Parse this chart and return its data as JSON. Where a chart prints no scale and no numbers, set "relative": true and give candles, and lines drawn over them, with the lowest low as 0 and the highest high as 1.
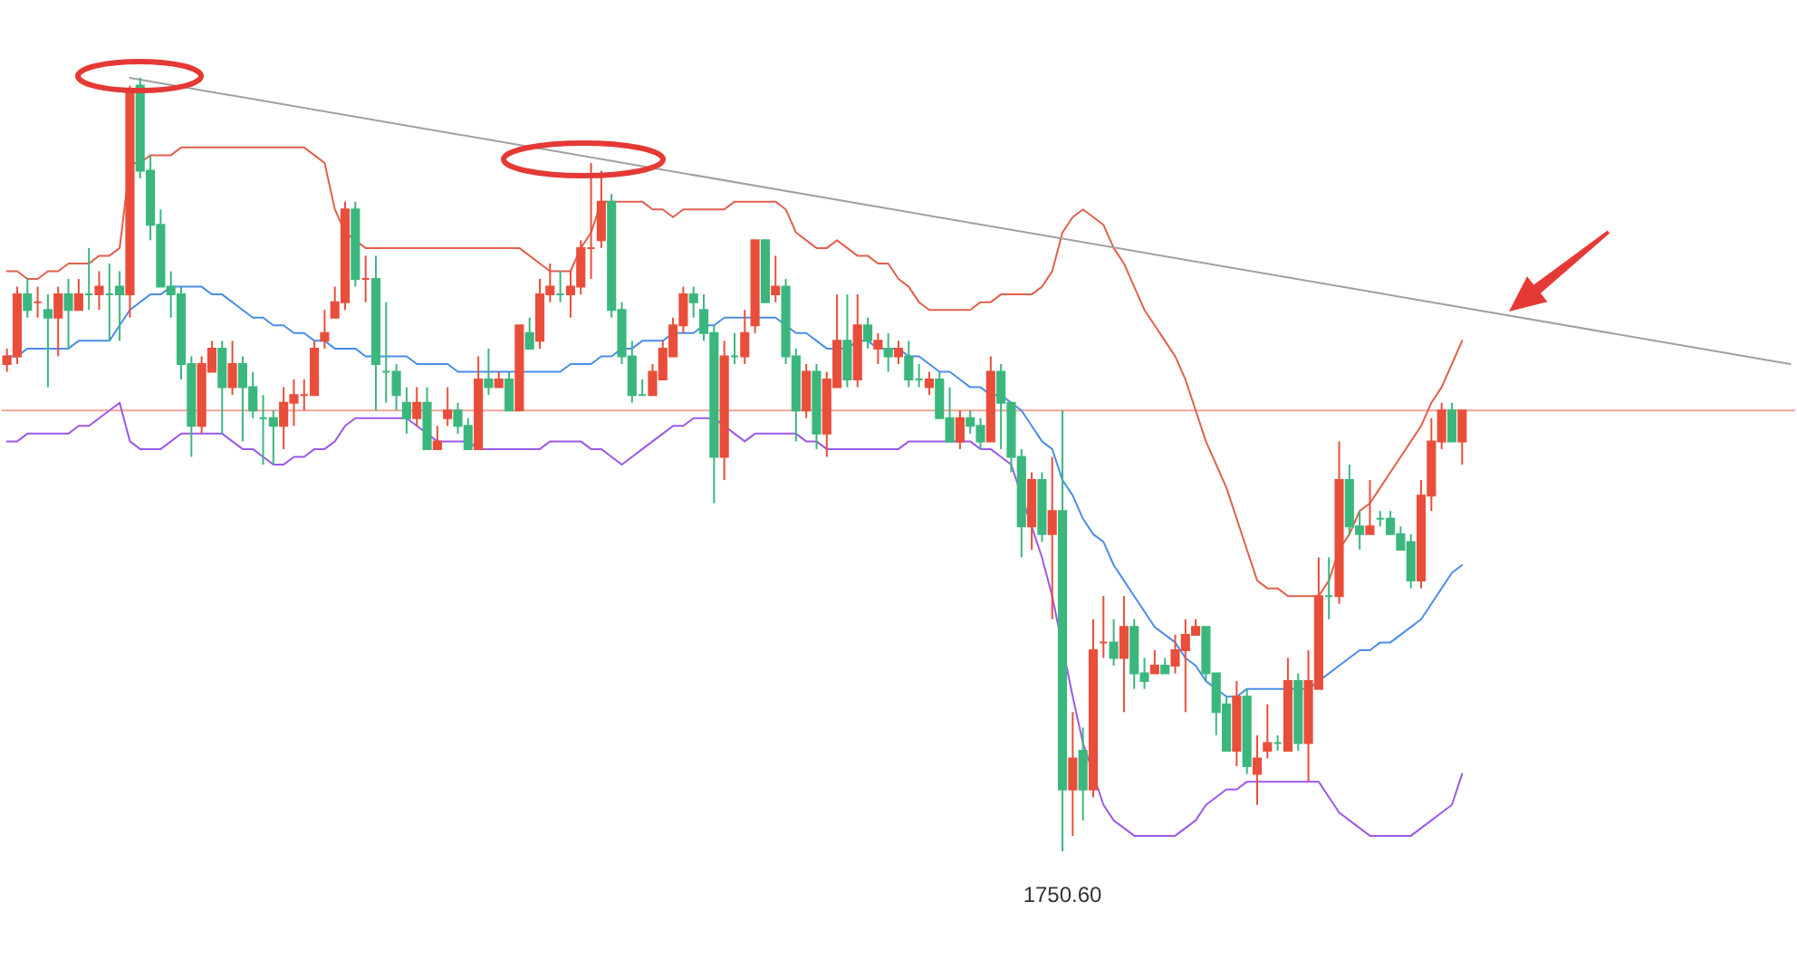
{
  "chart_data": {
    "type": "candlestick",
    "relative": true,
    "categories": [
      null,
      null,
      null,
      null,
      null,
      null,
      null,
      null,
      null,
      null,
      null,
      null,
      null,
      null,
      null,
      null,
      null,
      null,
      null,
      null,
      null,
      null,
      null,
      null,
      null,
      null,
      null,
      null,
      null,
      null,
      null,
      null,
      null,
      null,
      null,
      null,
      null,
      null,
      null,
      null,
      null,
      null,
      null,
      null,
      null,
      null,
      null,
      null,
      null,
      null,
      null,
      null,
      null,
      null,
      null,
      null,
      null,
      null,
      null,
      null,
      null,
      null,
      null,
      null,
      null,
      null,
      null,
      null,
      null,
      null,
      null,
      null,
      null,
      null,
      null,
      null,
      null,
      null,
      null,
      null,
      null,
      null,
      null,
      null,
      null,
      null,
      null,
      null,
      null,
      null,
      null,
      null,
      null,
      null,
      null,
      null,
      null,
      null,
      null,
      null,
      null,
      null,
      null,
      null,
      null,
      null,
      null,
      null,
      null,
      null,
      null,
      null,
      null,
      null,
      null,
      null,
      null,
      null,
      null,
      null,
      null,
      null,
      null,
      null,
      null,
      null,
      null,
      null,
      null,
      null,
      null,
      null,
      null,
      null,
      null,
      null,
      null,
      null,
      null,
      null,
      null,
      null,
      null,
      null,
      null,
      null,
      null,
      null,
      null,
      null,
      null,
      null,
      null,
      null,
      null,
      null,
      null,
      null,
      null,
      null,
      null,
      null,
      null,
      null,
      null,
      null,
      null,
      null,
      null,
      null,
      null,
      null,
      null,
      null,
      null
    ],
    "ohlc": [
      [
        0.63,
        0.65,
        0.62,
        0.64
      ],
      [
        0.64,
        0.73,
        0.63,
        0.72
      ],
      [
        0.72,
        0.74,
        0.69,
        0.7
      ],
      [
        0.71,
        0.73,
        0.69,
        0.71
      ],
      [
        0.7,
        0.72,
        0.6,
        0.69
      ],
      [
        0.69,
        0.73,
        0.64,
        0.72
      ],
      [
        0.72,
        0.74,
        0.65,
        0.7
      ],
      [
        0.7,
        0.74,
        0.7,
        0.72
      ],
      [
        0.72,
        0.78,
        0.7,
        0.72
      ],
      [
        0.72,
        0.75,
        0.7,
        0.73
      ],
      [
        0.72,
        0.76,
        0.66,
        0.72
      ],
      [
        0.73,
        0.75,
        0.66,
        0.72
      ],
      [
        0.72,
        0.99,
        0.69,
        0.98
      ],
      [
        0.99,
        1.0,
        0.87,
        0.88
      ],
      [
        0.88,
        0.9,
        0.79,
        0.81
      ],
      [
        0.81,
        0.83,
        0.73,
        0.73
      ],
      [
        0.73,
        0.75,
        0.69,
        0.72
      ],
      [
        0.72,
        0.73,
        0.61,
        0.63
      ],
      [
        0.63,
        0.64,
        0.51,
        0.55
      ],
      [
        0.55,
        0.64,
        0.54,
        0.63
      ],
      [
        0.62,
        0.66,
        0.62,
        0.65
      ],
      [
        0.65,
        0.66,
        0.54,
        0.6
      ],
      [
        0.6,
        0.66,
        0.59,
        0.63
      ],
      [
        0.63,
        0.64,
        0.53,
        0.6
      ],
      [
        0.6,
        0.62,
        0.56,
        0.57
      ],
      [
        0.56,
        0.59,
        0.5,
        0.56
      ],
      [
        0.56,
        0.57,
        0.5,
        0.55
      ],
      [
        0.55,
        0.6,
        0.52,
        0.58
      ],
      [
        0.58,
        0.61,
        0.55,
        0.59
      ],
      [
        0.59,
        0.61,
        0.57,
        0.59
      ],
      [
        0.59,
        0.66,
        0.59,
        0.65
      ],
      [
        0.66,
        0.7,
        0.65,
        0.67
      ],
      [
        0.69,
        0.73,
        0.69,
        0.71
      ],
      [
        0.71,
        0.84,
        0.7,
        0.83
      ],
      [
        0.83,
        0.84,
        0.73,
        0.74
      ],
      [
        0.74,
        0.77,
        0.71,
        0.74
      ],
      [
        0.74,
        0.77,
        0.57,
        0.63
      ],
      [
        0.62,
        0.71,
        0.58,
        0.62
      ],
      [
        0.62,
        0.63,
        0.57,
        0.59
      ],
      [
        0.58,
        0.6,
        0.54,
        0.56
      ],
      [
        0.56,
        0.6,
        0.55,
        0.58
      ],
      [
        0.58,
        0.6,
        0.52,
        0.52
      ],
      [
        0.52,
        0.55,
        0.52,
        0.53
      ],
      [
        0.56,
        0.6,
        0.55,
        0.57
      ],
      [
        0.57,
        0.58,
        0.54,
        0.55
      ],
      [
        0.55,
        0.56,
        0.52,
        0.52
      ],
      [
        0.52,
        0.64,
        0.52,
        0.61
      ],
      [
        0.61,
        0.65,
        0.59,
        0.6
      ],
      [
        0.6,
        0.62,
        0.6,
        0.61
      ],
      [
        0.61,
        0.62,
        0.57,
        0.57
      ],
      [
        0.57,
        0.68,
        0.57,
        0.68
      ],
      [
        0.67,
        0.69,
        0.65,
        0.65
      ],
      [
        0.66,
        0.74,
        0.65,
        0.72
      ],
      [
        0.72,
        0.76,
        0.71,
        0.73
      ],
      [
        0.72,
        0.75,
        0.71,
        0.72
      ],
      [
        0.72,
        0.75,
        0.69,
        0.73
      ],
      [
        0.73,
        0.79,
        0.72,
        0.78
      ],
      [
        0.78,
        0.89,
        0.74,
        0.78
      ],
      [
        0.79,
        0.88,
        0.78,
        0.84
      ],
      [
        0.84,
        0.85,
        0.69,
        0.7
      ],
      [
        0.7,
        0.71,
        0.63,
        0.64
      ],
      [
        0.64,
        0.66,
        0.58,
        0.59
      ],
      [
        0.59,
        0.61,
        0.59,
        0.59
      ],
      [
        0.59,
        0.63,
        0.59,
        0.62
      ],
      [
        0.61,
        0.66,
        0.61,
        0.65
      ],
      [
        0.64,
        0.69,
        0.64,
        0.68
      ],
      [
        0.68,
        0.73,
        0.67,
        0.72
      ],
      [
        0.72,
        0.73,
        0.69,
        0.71
      ],
      [
        0.7,
        0.72,
        0.66,
        0.67
      ],
      [
        0.67,
        0.68,
        0.45,
        0.51
      ],
      [
        0.51,
        0.66,
        0.48,
        0.64
      ],
      [
        0.64,
        0.67,
        0.63,
        0.64
      ],
      [
        0.64,
        0.7,
        0.63,
        0.67
      ],
      [
        0.68,
        0.79,
        0.67,
        0.79
      ],
      [
        0.79,
        0.79,
        0.71,
        0.71
      ],
      [
        0.72,
        0.77,
        0.71,
        0.73
      ],
      [
        0.73,
        0.74,
        0.63,
        0.64
      ],
      [
        0.64,
        0.65,
        0.53,
        0.57
      ],
      [
        0.57,
        0.63,
        0.56,
        0.62
      ],
      [
        0.62,
        0.63,
        0.52,
        0.54
      ],
      [
        0.54,
        0.62,
        0.51,
        0.61
      ],
      [
        0.6,
        0.72,
        0.6,
        0.66
      ],
      [
        0.66,
        0.72,
        0.6,
        0.61
      ],
      [
        0.61,
        0.72,
        0.6,
        0.68
      ],
      [
        0.68,
        0.69,
        0.65,
        0.66
      ],
      [
        0.65,
        0.67,
        0.63,
        0.66
      ],
      [
        0.65,
        0.67,
        0.62,
        0.64
      ],
      [
        0.64,
        0.66,
        0.63,
        0.65
      ],
      [
        0.64,
        0.66,
        0.6,
        0.61
      ],
      [
        0.61,
        0.63,
        0.6,
        0.61
      ],
      [
        0.6,
        0.62,
        0.59,
        0.61
      ],
      [
        0.61,
        0.62,
        0.56,
        0.56
      ],
      [
        0.56,
        0.6,
        0.53,
        0.53
      ],
      [
        0.53,
        0.57,
        0.52,
        0.56
      ],
      [
        0.56,
        0.57,
        0.54,
        0.55
      ],
      [
        0.55,
        0.56,
        0.52,
        0.53
      ],
      [
        0.53,
        0.64,
        0.53,
        0.62
      ],
      [
        0.62,
        0.63,
        0.52,
        0.58
      ],
      [
        0.58,
        0.58,
        0.49,
        0.51
      ],
      [
        0.51,
        0.52,
        0.38,
        0.42
      ],
      [
        0.42,
        0.49,
        0.39,
        0.48
      ],
      [
        0.48,
        0.49,
        0.4,
        0.41
      ],
      [
        0.41,
        0.51,
        0.3,
        0.44
      ],
      [
        0.44,
        0.57,
        0.0,
        0.08
      ],
      [
        0.08,
        0.18,
        0.02,
        0.12
      ],
      [
        0.13,
        0.16,
        0.04,
        0.08
      ],
      [
        0.08,
        0.3,
        0.07,
        0.26
      ],
      [
        0.27,
        0.33,
        0.25,
        0.27
      ],
      [
        0.27,
        0.3,
        0.24,
        0.25
      ],
      [
        0.25,
        0.33,
        0.18,
        0.29
      ],
      [
        0.29,
        0.3,
        0.21,
        0.23
      ],
      [
        0.23,
        0.25,
        0.21,
        0.22
      ],
      [
        0.23,
        0.26,
        0.23,
        0.24
      ],
      [
        0.24,
        0.25,
        0.23,
        0.23
      ],
      [
        0.24,
        0.28,
        0.23,
        0.26
      ],
      [
        0.26,
        0.3,
        0.18,
        0.28
      ],
      [
        0.28,
        0.3,
        0.28,
        0.29
      ],
      [
        0.29,
        0.29,
        0.22,
        0.23
      ],
      [
        0.23,
        0.23,
        0.15,
        0.18
      ],
      [
        0.19,
        0.2,
        0.13,
        0.13
      ],
      [
        0.13,
        0.22,
        0.11,
        0.2
      ],
      [
        0.2,
        0.21,
        0.1,
        0.11
      ],
      [
        0.1,
        0.15,
        0.06,
        0.12
      ],
      [
        0.13,
        0.19,
        0.12,
        0.14
      ],
      [
        0.14,
        0.15,
        0.13,
        0.14
      ],
      [
        0.13,
        0.25,
        0.13,
        0.22
      ],
      [
        0.22,
        0.23,
        0.13,
        0.14
      ],
      [
        0.14,
        0.26,
        0.09,
        0.22
      ],
      [
        0.21,
        0.38,
        0.21,
        0.33
      ],
      [
        0.33,
        0.38,
        0.3,
        0.33
      ],
      [
        0.33,
        0.53,
        0.32,
        0.48
      ],
      [
        0.48,
        0.5,
        0.41,
        0.42
      ],
      [
        0.42,
        0.44,
        0.39,
        0.41
      ],
      [
        0.41,
        0.48,
        0.41,
        0.42
      ],
      [
        0.43,
        0.44,
        0.42,
        0.43
      ],
      [
        0.43,
        0.44,
        0.41,
        0.41
      ],
      [
        0.41,
        0.42,
        0.39,
        0.39
      ],
      [
        0.4,
        0.41,
        0.34,
        0.35
      ],
      [
        0.35,
        0.48,
        0.34,
        0.46
      ],
      [
        0.46,
        0.56,
        0.44,
        0.53
      ],
      [
        0.53,
        0.58,
        0.52,
        0.57
      ],
      [
        0.57,
        0.58,
        0.53,
        0.53
      ],
      [
        0.53,
        0.57,
        0.5,
        0.57
      ],
      null,
      null,
      null,
      null,
      null,
      null,
      null,
      null,
      null,
      null,
      null,
      null,
      null,
      null,
      null,
      null,
      null,
      null,
      null,
      null,
      null,
      null,
      null,
      null,
      null,
      null,
      null,
      null,
      null,
      null,
      null,
      null
    ],
    "colors": [
      "#e94e3b",
      "#e94e3b",
      "#3bb77e",
      "#e94e3b",
      "#3bb77e",
      "#e94e3b",
      "#3bb77e",
      "#e94e3b",
      "#3bb77e",
      "#e94e3b",
      "#3bb77e",
      "#3bb77e",
      "#e94e3b",
      "#3bb77e",
      "#3bb77e",
      "#3bb77e",
      "#3bb77e",
      "#3bb77e",
      "#3bb77e",
      "#e94e3b",
      "#e94e3b",
      "#3bb77e",
      "#e94e3b",
      "#3bb77e",
      "#3bb77e",
      "#3bb77e",
      "#3bb77e",
      "#e94e3b",
      "#e94e3b",
      "#e94e3b",
      "#e94e3b",
      "#e94e3b",
      "#e94e3b",
      "#e94e3b",
      "#3bb77e",
      "#e94e3b",
      "#3bb77e",
      "#3bb77e",
      "#3bb77e",
      "#3bb77e",
      "#e94e3b",
      "#3bb77e",
      "#e94e3b",
      "#e94e3b",
      "#3bb77e",
      "#3bb77e",
      "#e94e3b",
      "#3bb77e",
      "#e94e3b",
      "#3bb77e",
      "#e94e3b",
      "#3bb77e",
      "#e94e3b",
      "#e94e3b",
      "#3bb77e",
      "#e94e3b",
      "#e94e3b",
      "#e94e3b",
      "#e94e3b",
      "#3bb77e",
      "#3bb77e",
      "#3bb77e",
      "#3bb77e",
      "#e94e3b",
      "#e94e3b",
      "#e94e3b",
      "#e94e3b",
      "#3bb77e",
      "#3bb77e",
      "#3bb77e",
      "#e94e3b",
      "#3bb77e",
      "#e94e3b",
      "#e94e3b",
      "#3bb77e",
      "#e94e3b",
      "#3bb77e",
      "#3bb77e",
      "#e94e3b",
      "#3bb77e",
      "#e94e3b",
      "#e94e3b",
      "#3bb77e",
      "#e94e3b",
      "#3bb77e",
      "#e94e3b",
      "#3bb77e",
      "#e94e3b",
      "#3bb77e",
      "#3bb77e",
      "#e94e3b",
      "#3bb77e",
      "#3bb77e",
      "#e94e3b",
      "#3bb77e",
      "#3bb77e",
      "#e94e3b",
      "#3bb77e",
      "#3bb77e",
      "#3bb77e",
      "#e94e3b",
      "#3bb77e",
      "#e94e3b",
      "#3bb77e",
      "#e94e3b",
      "#3bb77e",
      "#e94e3b",
      "#e94e3b",
      "#3bb77e",
      "#e94e3b",
      "#3bb77e",
      "#3bb77e",
      "#e94e3b",
      "#3bb77e",
      "#e94e3b",
      "#e94e3b",
      "#e94e3b",
      "#3bb77e",
      "#3bb77e",
      "#3bb77e",
      "#e94e3b",
      "#3bb77e",
      "#e94e3b",
      "#e94e3b",
      "#3bb77e",
      "#e94e3b",
      "#3bb77e",
      "#e94e3b",
      "#e94e3b",
      "#3bb77e",
      "#e94e3b",
      "#3bb77e",
      "#3bb77e",
      "#e94e3b",
      "#3bb77e",
      "#3bb77e",
      "#3bb77e",
      "#3bb77e",
      "#e94e3b",
      "#e94e3b",
      "#e94e3b",
      "#3bb77e",
      "#e94e3b",
      null,
      null,
      null,
      null,
      null,
      null,
      null,
      null,
      null,
      null,
      null,
      null,
      null,
      null,
      null,
      null,
      null,
      null,
      null,
      null,
      null,
      null,
      null,
      null,
      null,
      null,
      null,
      null,
      null,
      null,
      null,
      null
    ],
    "series": [
      {
        "type": "line",
        "color": "#e0604c",
        "values": [
          0.75,
          0.75,
          0.74,
          0.74,
          0.75,
          0.75,
          0.76,
          0.76,
          0.76,
          0.77,
          0.77,
          0.78,
          0.89,
          0.89,
          0.9,
          0.9,
          0.9,
          0.91,
          0.91,
          0.91,
          0.91,
          0.91,
          0.91,
          0.91,
          0.91,
          0.91,
          0.91,
          0.91,
          0.91,
          0.91,
          0.9,
          0.89,
          0.83,
          0.8,
          0.79,
          0.78,
          0.78,
          0.78,
          0.78,
          0.78,
          0.78,
          0.78,
          0.78,
          0.78,
          0.78,
          0.78,
          0.78,
          0.78,
          0.78,
          0.78,
          0.78,
          0.77,
          0.76,
          0.75,
          0.75,
          0.75,
          0.78,
          0.8,
          0.84,
          0.84,
          0.84,
          0.84,
          0.84,
          0.83,
          0.83,
          0.82,
          0.83,
          0.83,
          0.83,
          0.83,
          0.83,
          0.84,
          0.84,
          0.84,
          0.84,
          0.84,
          0.83,
          0.8,
          0.79,
          0.78,
          0.78,
          0.79,
          0.78,
          0.77,
          0.77,
          0.76,
          0.76,
          0.74,
          0.73,
          0.71,
          0.7,
          0.7,
          0.7,
          0.7,
          0.7,
          0.71,
          0.71,
          0.72,
          0.72,
          0.72,
          0.72,
          0.73,
          0.75,
          0.8,
          0.82,
          0.83,
          0.82,
          0.81,
          0.78,
          0.76,
          0.73,
          0.7,
          0.68,
          0.66,
          0.64,
          0.61,
          0.57,
          0.53,
          0.5,
          0.47,
          0.43,
          0.39,
          0.35,
          0.34,
          0.34,
          0.33,
          0.33,
          0.33,
          0.33,
          0.35,
          0.39,
          0.41,
          0.44,
          0.45,
          0.47,
          0.49,
          0.51,
          0.53,
          0.55,
          0.58,
          0.6,
          0.63,
          0.66,
          null,
          null,
          null,
          null,
          null,
          null,
          null,
          null,
          null,
          null,
          null,
          null,
          null,
          null,
          null,
          null,
          null,
          null,
          null,
          null,
          null,
          null,
          null,
          null,
          null,
          null,
          null,
          null,
          null,
          null,
          null,
          null
        ]
      },
      {
        "type": "line",
        "color": "#4a8de8",
        "values": [
          0.64,
          0.64,
          0.65,
          0.65,
          0.65,
          0.65,
          0.65,
          0.66,
          0.66,
          0.66,
          0.66,
          0.68,
          0.7,
          0.71,
          0.72,
          0.72,
          0.73,
          0.73,
          0.73,
          0.73,
          0.72,
          0.72,
          0.71,
          0.7,
          0.69,
          0.69,
          0.68,
          0.68,
          0.67,
          0.67,
          0.66,
          0.66,
          0.65,
          0.65,
          0.65,
          0.64,
          0.64,
          0.64,
          0.64,
          0.64,
          0.63,
          0.63,
          0.63,
          0.63,
          0.62,
          0.62,
          0.62,
          0.62,
          0.62,
          0.62,
          0.62,
          0.62,
          0.62,
          0.62,
          0.62,
          0.63,
          0.63,
          0.63,
          0.64,
          0.64,
          0.65,
          0.65,
          0.66,
          0.66,
          0.66,
          0.67,
          0.67,
          0.67,
          0.68,
          0.68,
          0.69,
          0.69,
          0.69,
          0.69,
          0.69,
          0.69,
          0.68,
          0.67,
          0.67,
          0.66,
          0.65,
          0.65,
          0.65,
          0.66,
          0.66,
          0.65,
          0.65,
          0.65,
          0.64,
          0.64,
          0.63,
          0.62,
          0.62,
          0.61,
          0.6,
          0.6,
          0.59,
          0.59,
          0.58,
          0.57,
          0.55,
          0.53,
          0.52,
          0.48,
          0.46,
          0.43,
          0.41,
          0.4,
          0.37,
          0.35,
          0.33,
          0.31,
          0.29,
          0.28,
          0.27,
          0.25,
          0.24,
          0.22,
          0.21,
          0.2,
          0.2,
          0.21,
          0.21,
          0.21,
          0.21,
          0.21,
          0.21,
          0.21,
          0.22,
          0.23,
          0.24,
          0.25,
          0.26,
          0.26,
          0.27,
          0.27,
          0.28,
          0.29,
          0.3,
          0.32,
          0.34,
          0.36,
          0.37,
          null,
          null,
          null,
          null,
          null,
          null,
          null,
          null,
          null,
          null,
          null,
          null,
          null,
          null,
          null,
          null,
          null,
          null,
          null,
          null,
          null,
          null,
          null,
          null,
          null,
          null,
          null,
          null,
          null,
          null,
          null,
          null
        ]
      },
      {
        "type": "line",
        "color": "#9b59e8",
        "values": [
          0.53,
          0.53,
          0.54,
          0.54,
          0.54,
          0.54,
          0.54,
          0.55,
          0.55,
          0.56,
          0.57,
          0.58,
          0.53,
          0.52,
          0.52,
          0.52,
          0.53,
          0.54,
          0.54,
          0.54,
          0.54,
          0.54,
          0.53,
          0.52,
          0.52,
          0.51,
          0.5,
          0.5,
          0.51,
          0.51,
          0.52,
          0.52,
          0.53,
          0.55,
          0.56,
          0.56,
          0.56,
          0.56,
          0.56,
          0.56,
          0.55,
          0.54,
          0.53,
          0.53,
          0.53,
          0.53,
          0.52,
          0.52,
          0.52,
          0.52,
          0.52,
          0.52,
          0.52,
          0.53,
          0.53,
          0.53,
          0.53,
          0.52,
          0.52,
          0.51,
          0.5,
          0.51,
          0.52,
          0.53,
          0.54,
          0.55,
          0.55,
          0.56,
          0.56,
          0.56,
          0.55,
          0.54,
          0.53,
          0.54,
          0.54,
          0.54,
          0.54,
          0.54,
          0.53,
          0.53,
          0.52,
          0.52,
          0.52,
          0.52,
          0.52,
          0.52,
          0.52,
          0.52,
          0.53,
          0.53,
          0.53,
          0.53,
          0.53,
          0.53,
          0.53,
          0.52,
          0.52,
          0.51,
          0.5,
          null,
          0.42,
          0.38,
          0.33,
          null,
          0.2,
          0.14,
          null,
          0.06,
          0.04,
          0.03,
          0.02,
          0.02,
          0.02,
          0.02,
          0.02,
          0.03,
          0.04,
          0.06,
          0.07,
          0.08,
          0.08,
          0.09,
          0.09,
          0.09,
          0.09,
          0.09,
          0.09,
          0.09,
          0.09,
          0.07,
          0.05,
          0.04,
          0.03,
          0.02,
          0.02,
          0.02,
          0.02,
          0.02,
          0.03,
          0.04,
          0.05,
          0.06,
          0.1,
          null,
          null,
          null,
          null,
          null,
          null,
          null,
          null,
          null,
          null,
          null,
          null,
          null,
          null,
          null,
          null,
          null,
          null,
          null,
          null,
          null,
          null,
          null,
          null,
          null,
          null,
          null,
          null,
          null,
          null,
          null,
          null
        ]
      },
      {
        "type": "line",
        "color": "#a0a0a0",
        "values": [
          null,
          null,
          null,
          null,
          null,
          null,
          null,
          null,
          null,
          null,
          null,
          null,
          1.0,
          null,
          null,
          null,
          null,
          null,
          null,
          null,
          null,
          null,
          null,
          null,
          null,
          null,
          null,
          null,
          null,
          null,
          null,
          null,
          null,
          null,
          null,
          null,
          null,
          null,
          null,
          null,
          null,
          null,
          null,
          null,
          null,
          null,
          null,
          null,
          null,
          null,
          null,
          null,
          null,
          null,
          null,
          null,
          null,
          null,
          null,
          null,
          null,
          null,
          null,
          null,
          null,
          null,
          null,
          null,
          null,
          null,
          null,
          null,
          null,
          null,
          null,
          null,
          null,
          null,
          null,
          null,
          null,
          null,
          null,
          null,
          null,
          null,
          null,
          null,
          null,
          null,
          null,
          null,
          null,
          null,
          null,
          null,
          null,
          null,
          null,
          null,
          null,
          null,
          null,
          null,
          null,
          null,
          null,
          null,
          null,
          null,
          null,
          null,
          null,
          null,
          null,
          null,
          null,
          null,
          null,
          null,
          null,
          null,
          null,
          null,
          null,
          null,
          null,
          null,
          null,
          null,
          null,
          null,
          null,
          null,
          null,
          null,
          null,
          null,
          null,
          null,
          null,
          null,
          null,
          null,
          null,
          null,
          null,
          null,
          null,
          null,
          null,
          null,
          null,
          null,
          null,
          null,
          null,
          null,
          null,
          null,
          null,
          null,
          null,
          null,
          null,
          null,
          null,
          null,
          null,
          null,
          null,
          null,
          null,
          null,
          0.63
        ]
      }
    ],
    "ref_lines": [
      {
        "axis": "y",
        "value": 0.57,
        "color": "#f2a49a"
      }
    ],
    "annotations": [
      {
        "text": "1750.60",
        "y": 0.0
      }
    ]
  }
}
